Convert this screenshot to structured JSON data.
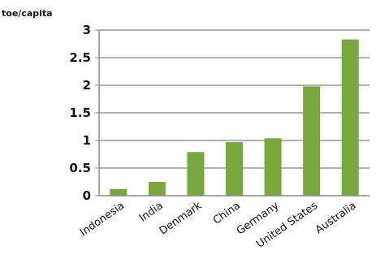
{
  "chart_data": {
    "type": "bar",
    "unit_label": "toe/capita",
    "categories": [
      "Indonesia",
      "India",
      "Denmark",
      "China",
      "Germany",
      "United States",
      "Australia"
    ],
    "values": [
      0.12,
      0.25,
      0.79,
      0.97,
      1.04,
      1.98,
      2.83
    ],
    "ylim": [
      0,
      3
    ],
    "yticks": [
      {
        "value": 3,
        "label": "3"
      },
      {
        "value": 2.5,
        "label": "2.5"
      },
      {
        "value": 2,
        "label": "2"
      },
      {
        "value": 1.5,
        "label": "1.5"
      },
      {
        "value": 1,
        "label": "1"
      },
      {
        "value": 0.5,
        "label": "0.5"
      },
      {
        "value": 0,
        "label": "0"
      }
    ],
    "grid": true,
    "bar_color": "#77a83b",
    "grid_color": "#9a9a9a",
    "axis_color": "#888888"
  }
}
